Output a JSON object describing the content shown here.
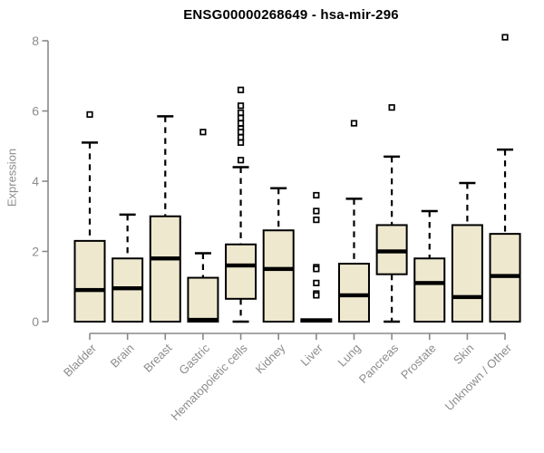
{
  "chart_data": {
    "type": "boxplot",
    "title": "ENSG00000268649 - hsa-mir-296",
    "xlabel": "",
    "ylabel": "Expression",
    "ylim": [
      0,
      8
    ],
    "yticks": [
      0,
      2,
      4,
      6,
      8
    ],
    "grid": false,
    "legend": false,
    "categories": [
      "Bladder",
      "Brain",
      "Breast",
      "Gastric",
      "Hematopoietic cells",
      "Kidney",
      "Liver",
      "Lung",
      "Pancreas",
      "Prostate",
      "Skin",
      "Unknown / Other"
    ],
    "series": [
      {
        "name": "Bladder",
        "whisker_low": 0,
        "q1": 0,
        "median": 0.9,
        "q3": 2.3,
        "whisker_high": 5.1,
        "outliers": [
          5.9
        ]
      },
      {
        "name": "Brain",
        "whisker_low": 0,
        "q1": 0,
        "median": 0.95,
        "q3": 1.8,
        "whisker_high": 3.05,
        "outliers": []
      },
      {
        "name": "Breast",
        "whisker_low": 0,
        "q1": 0,
        "median": 1.8,
        "q3": 3.0,
        "whisker_high": 5.85,
        "outliers": []
      },
      {
        "name": "Gastric",
        "whisker_low": 0,
        "q1": 0,
        "median": 0.05,
        "q3": 1.25,
        "whisker_high": 1.95,
        "outliers": [
          5.4
        ]
      },
      {
        "name": "Hematopoietic cells",
        "whisker_low": 0,
        "q1": 0.65,
        "median": 1.6,
        "q3": 2.2,
        "whisker_high": 4.4,
        "outliers": [
          6.6,
          6.15,
          5.95,
          5.8,
          5.65,
          5.5,
          5.4,
          5.25,
          5.1,
          4.6
        ]
      },
      {
        "name": "Kidney",
        "whisker_low": 0,
        "q1": 0,
        "median": 1.5,
        "q3": 2.6,
        "whisker_high": 3.8,
        "outliers": []
      },
      {
        "name": "Liver",
        "whisker_low": 0,
        "q1": 0,
        "median": 0.03,
        "q3": 0.07,
        "whisker_high": 0.07,
        "outliers": [
          3.6,
          3.15,
          2.9,
          1.55,
          1.5,
          1.1,
          0.8,
          0.75
        ]
      },
      {
        "name": "Lung",
        "whisker_low": 0,
        "q1": 0,
        "median": 0.75,
        "q3": 1.65,
        "whisker_high": 3.5,
        "outliers": [
          5.65
        ]
      },
      {
        "name": "Pancreas",
        "whisker_low": 0,
        "q1": 1.35,
        "median": 2.0,
        "q3": 2.75,
        "whisker_high": 4.7,
        "outliers": [
          6.1
        ]
      },
      {
        "name": "Prostate",
        "whisker_low": 0,
        "q1": 0,
        "median": 1.1,
        "q3": 1.8,
        "whisker_high": 3.15,
        "outliers": []
      },
      {
        "name": "Skin",
        "whisker_low": 0,
        "q1": 0,
        "median": 0.7,
        "q3": 2.75,
        "whisker_high": 3.95,
        "outliers": []
      },
      {
        "name": "Unknown / Other",
        "whisker_low": 0,
        "q1": 0,
        "median": 1.3,
        "q3": 2.5,
        "whisker_high": 4.9,
        "outliers": [
          8.1
        ]
      }
    ],
    "colors": {
      "box_fill": "#EEE8CF",
      "box_border": "#000000",
      "median": "#000000",
      "whisker": "#000000",
      "outlier_stroke": "#000000",
      "outlier_fill": "#FFFFFF",
      "axis": "#888888",
      "tick_label": "#8C8C8C",
      "title": "#000000",
      "background": "#FFFFFF"
    }
  }
}
